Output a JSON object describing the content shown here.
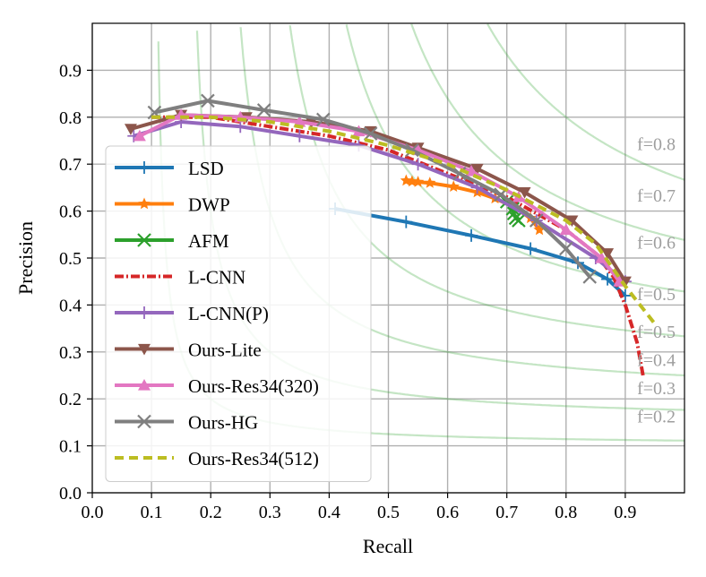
{
  "chart_data": {
    "type": "line",
    "title": "",
    "xlabel": "Recall",
    "ylabel": "Precision",
    "xlim": [
      0.0,
      1.0
    ],
    "ylim": [
      0.0,
      1.0
    ],
    "grid": true,
    "legend_position": "left",
    "xticks": [
      0.0,
      0.1,
      0.2,
      0.3,
      0.4,
      0.5,
      0.6,
      0.7,
      0.8,
      0.9
    ],
    "yticks": [
      0.0,
      0.1,
      0.2,
      0.3,
      0.4,
      0.5,
      0.6,
      0.7,
      0.8,
      0.9
    ],
    "iso_f_curves": [
      {
        "f": 0.2,
        "label": "f=0.2",
        "label_at": [
          0.92,
          0.15
        ]
      },
      {
        "f": 0.3,
        "label": "f=0.3",
        "label_at": [
          0.92,
          0.21
        ]
      },
      {
        "f": 0.4,
        "label": "f=0.4",
        "label_at": [
          0.92,
          0.27
        ]
      },
      {
        "f": 0.5,
        "label": "f=0.5",
        "label_at": [
          0.92,
          0.33
        ]
      },
      {
        "f": 0.6,
        "label": "f=0.6",
        "label_at": [
          0.92,
          0.52
        ]
      },
      {
        "f": 0.7,
        "label": "f=0.7",
        "label_at": [
          0.92,
          0.62
        ]
      },
      {
        "f": 0.8,
        "label": "f=0.8",
        "label_at": [
          0.92,
          0.73
        ]
      }
    ],
    "extra_labels": [
      {
        "label": "f=0.5",
        "at": [
          0.92,
          0.41
        ]
      }
    ],
    "series": [
      {
        "name": "LSD",
        "color": "#1f77b4",
        "dash": "",
        "marker": "plus",
        "x": [
          0.41,
          0.53,
          0.64,
          0.74,
          0.82,
          0.87,
          0.9
        ],
        "y": [
          0.605,
          0.577,
          0.548,
          0.52,
          0.49,
          0.455,
          0.42
        ]
      },
      {
        "name": "DWP",
        "color": "#ff7f0e",
        "dash": "",
        "marker": "star",
        "x": [
          0.53,
          0.54,
          0.55,
          0.57,
          0.61,
          0.65,
          0.68,
          0.71,
          0.74,
          0.755
        ],
        "y": [
          0.665,
          0.663,
          0.662,
          0.66,
          0.652,
          0.64,
          0.627,
          0.61,
          0.585,
          0.56
        ]
      },
      {
        "name": "AFM",
        "color": "#2ca02c",
        "dash": "",
        "marker": "x",
        "x": [
          0.69,
          0.7,
          0.71,
          0.712,
          0.715,
          0.72
        ],
        "y": [
          0.635,
          0.62,
          0.605,
          0.595,
          0.585,
          0.58
        ]
      },
      {
        "name": "L-CNN",
        "color": "#d62728",
        "dash": "10,3,2,3",
        "marker": "none",
        "x": [
          0.1,
          0.2,
          0.3,
          0.4,
          0.5,
          0.6,
          0.7,
          0.8,
          0.85,
          0.88,
          0.9,
          0.92,
          0.93
        ],
        "y": [
          0.8,
          0.8,
          0.78,
          0.76,
          0.73,
          0.68,
          0.63,
          0.56,
          0.51,
          0.46,
          0.4,
          0.32,
          0.25
        ]
      },
      {
        "name": "L-CNN(P)",
        "color": "#9467bd",
        "dash": "",
        "marker": "plus",
        "x": [
          0.07,
          0.15,
          0.25,
          0.35,
          0.45,
          0.55,
          0.65,
          0.75,
          0.85,
          0.9
        ],
        "y": [
          0.76,
          0.79,
          0.78,
          0.76,
          0.74,
          0.7,
          0.65,
          0.58,
          0.5,
          0.45
        ]
      },
      {
        "name": "Ours-Lite",
        "color": "#8c564b",
        "dash": "",
        "marker": "tri-down",
        "x": [
          0.065,
          0.15,
          0.26,
          0.37,
          0.47,
          0.55,
          0.65,
          0.73,
          0.81,
          0.87,
          0.9
        ],
        "y": [
          0.775,
          0.805,
          0.8,
          0.79,
          0.77,
          0.735,
          0.69,
          0.64,
          0.58,
          0.51,
          0.45
        ]
      },
      {
        "name": "Ours-Res34(320)",
        "color": "#e377c2",
        "dash": "",
        "marker": "tri-up",
        "x": [
          0.08,
          0.15,
          0.25,
          0.35,
          0.45,
          0.55,
          0.64,
          0.72,
          0.8,
          0.86,
          0.89
        ],
        "y": [
          0.76,
          0.805,
          0.8,
          0.79,
          0.77,
          0.73,
          0.685,
          0.63,
          0.56,
          0.5,
          0.45
        ]
      },
      {
        "name": "Ours-HG",
        "color": "#7f7f7f",
        "dash": "",
        "marker": "x",
        "x": [
          0.105,
          0.195,
          0.29,
          0.39,
          0.47,
          0.54,
          0.62,
          0.69,
          0.75,
          0.8,
          0.84
        ],
        "y": [
          0.81,
          0.835,
          0.815,
          0.795,
          0.765,
          0.73,
          0.68,
          0.635,
          0.58,
          0.52,
          0.46
        ]
      },
      {
        "name": "Ours-Res34(512)",
        "color": "#bcbd22",
        "dash": "10,6",
        "marker": "none",
        "x": [
          0.1,
          0.2,
          0.3,
          0.4,
          0.5,
          0.6,
          0.7,
          0.8,
          0.85,
          0.9,
          0.95
        ],
        "y": [
          0.8,
          0.8,
          0.79,
          0.77,
          0.74,
          0.7,
          0.645,
          0.58,
          0.53,
          0.44,
          0.36
        ]
      }
    ]
  }
}
